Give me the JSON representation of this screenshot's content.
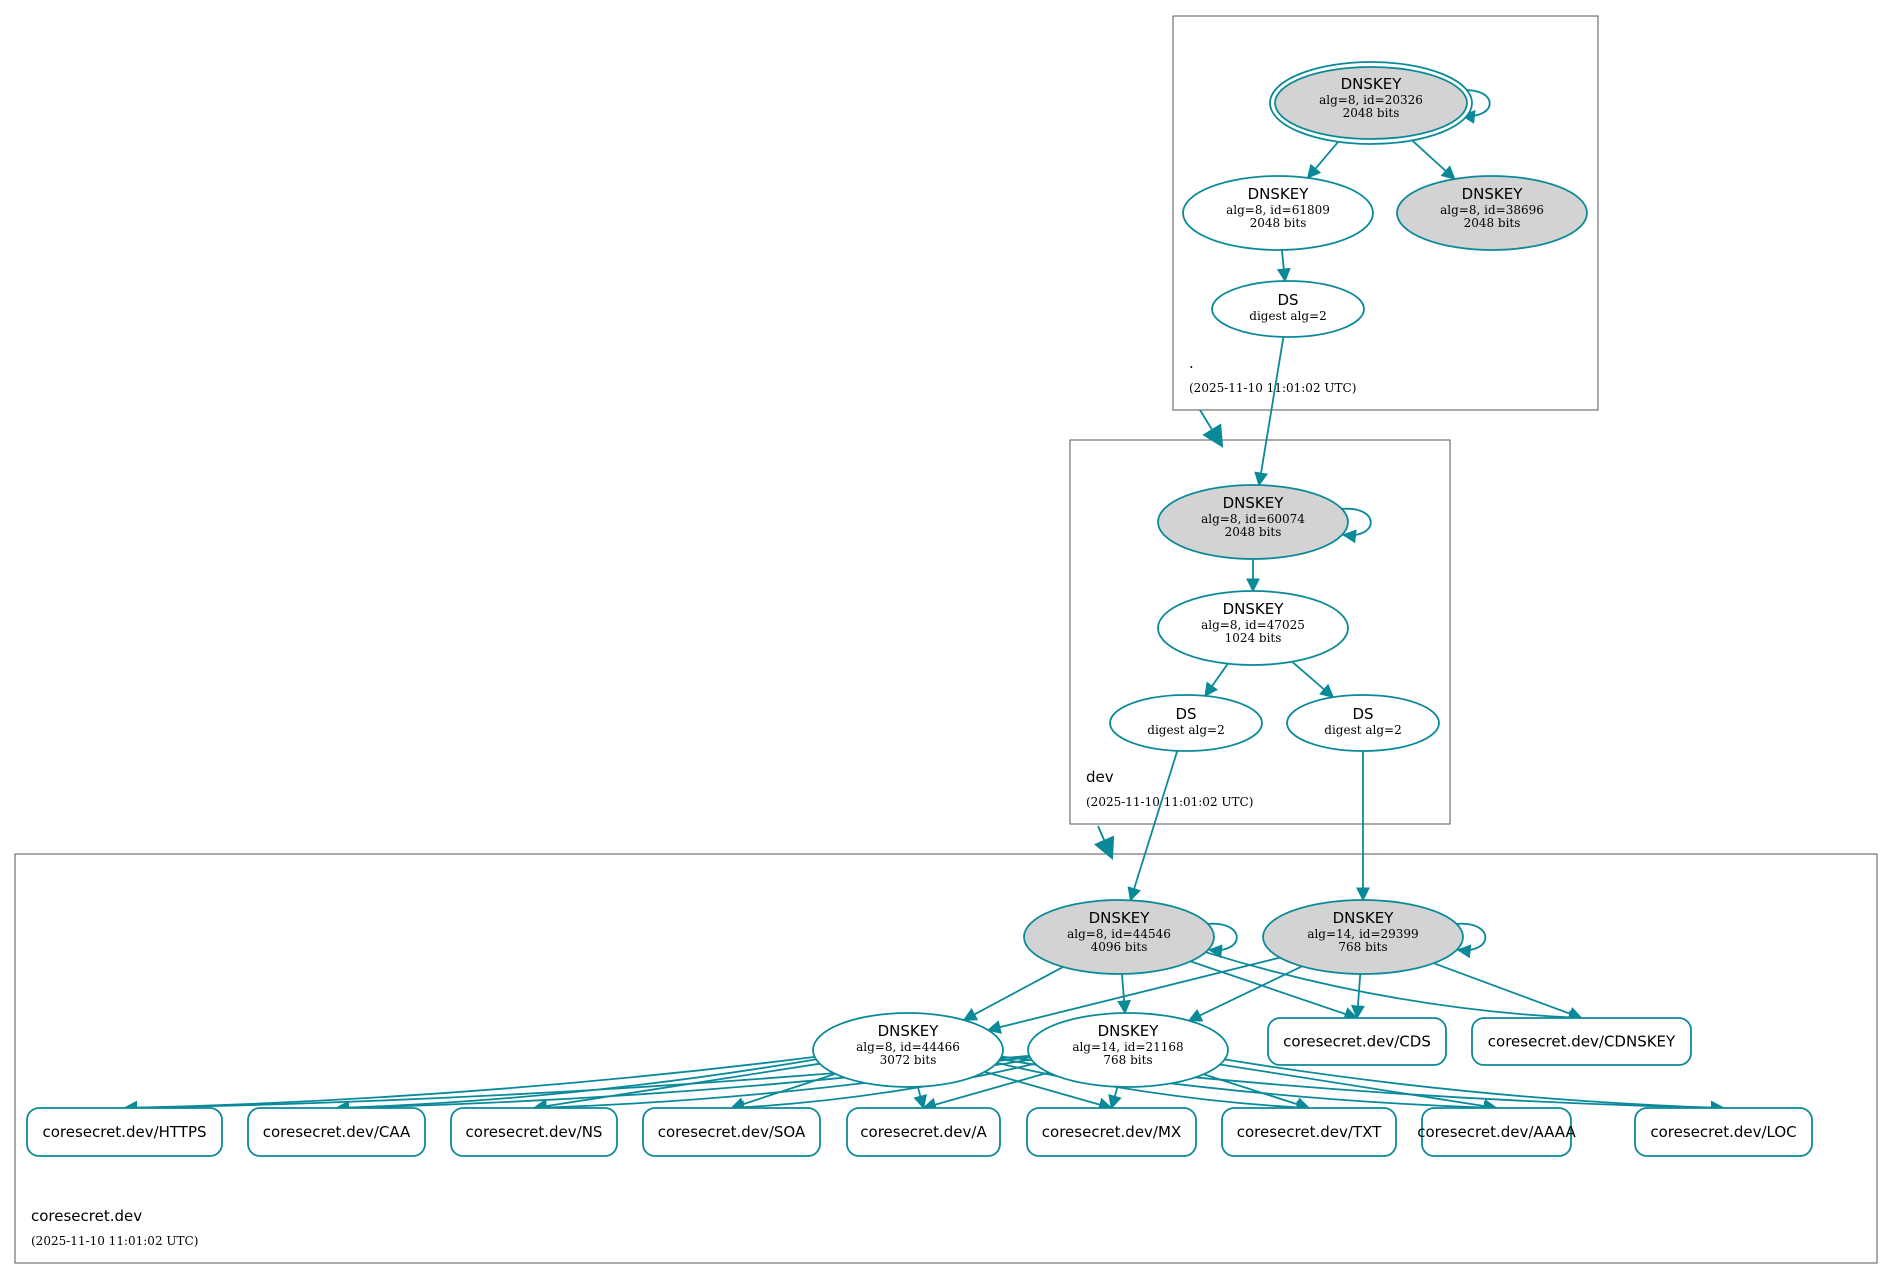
{
  "colors": {
    "edge": "#0a8a99",
    "shaded_node": "#d3d3d3",
    "zone_border": "#555555"
  },
  "zones": [
    {
      "id": "root",
      "name": ".",
      "date": "(2025-11-10 11:01:02 UTC)"
    },
    {
      "id": "dev",
      "name": "dev",
      "date": "(2025-11-10 11:01:02 UTC)"
    },
    {
      "id": "coresecret",
      "name": "coresecret.dev",
      "date": "(2025-11-10 11:01:02 UTC)"
    }
  ],
  "nodes": [
    {
      "id": "k20326",
      "kind": "ellipse",
      "shaded": true,
      "double": true,
      "lines": [
        "DNSKEY",
        "alg=8, id=20326",
        "2048 bits"
      ]
    },
    {
      "id": "k61809",
      "kind": "ellipse",
      "shaded": false,
      "lines": [
        "DNSKEY",
        "alg=8, id=61809",
        "2048 bits"
      ]
    },
    {
      "id": "k38696",
      "kind": "ellipse",
      "shaded": true,
      "lines": [
        "DNSKEY",
        "alg=8, id=38696",
        "2048 bits"
      ]
    },
    {
      "id": "dsroot",
      "kind": "ellipse",
      "shaded": false,
      "lines": [
        "DS",
        "digest alg=2"
      ]
    },
    {
      "id": "k60074",
      "kind": "ellipse",
      "shaded": true,
      "lines": [
        "DNSKEY",
        "alg=8, id=60074",
        "2048 bits"
      ]
    },
    {
      "id": "k47025",
      "kind": "ellipse",
      "shaded": false,
      "lines": [
        "DNSKEY",
        "alg=8, id=47025",
        "1024 bits"
      ]
    },
    {
      "id": "dsdev1",
      "kind": "ellipse",
      "shaded": false,
      "lines": [
        "DS",
        "digest alg=2"
      ]
    },
    {
      "id": "dsdev2",
      "kind": "ellipse",
      "shaded": false,
      "lines": [
        "DS",
        "digest alg=2"
      ]
    },
    {
      "id": "k44546",
      "kind": "ellipse",
      "shaded": true,
      "lines": [
        "DNSKEY",
        "alg=8, id=44546",
        "4096 bits"
      ]
    },
    {
      "id": "k29399",
      "kind": "ellipse",
      "shaded": true,
      "lines": [
        "DNSKEY",
        "alg=14, id=29399",
        "768 bits"
      ]
    },
    {
      "id": "k44466",
      "kind": "ellipse",
      "shaded": false,
      "lines": [
        "DNSKEY",
        "alg=8, id=44466",
        "3072 bits"
      ]
    },
    {
      "id": "k21168",
      "kind": "ellipse",
      "shaded": false,
      "lines": [
        "DNSKEY",
        "alg=14, id=21168",
        "768 bits"
      ]
    },
    {
      "id": "cds",
      "kind": "rrset",
      "lines": [
        "coresecret.dev/CDS"
      ]
    },
    {
      "id": "cdnskey",
      "kind": "rrset",
      "lines": [
        "coresecret.dev/CDNSKEY"
      ]
    },
    {
      "id": "https",
      "kind": "rrset",
      "lines": [
        "coresecret.dev/HTTPS"
      ]
    },
    {
      "id": "caa",
      "kind": "rrset",
      "lines": [
        "coresecret.dev/CAA"
      ]
    },
    {
      "id": "ns",
      "kind": "rrset",
      "lines": [
        "coresecret.dev/NS"
      ]
    },
    {
      "id": "soa",
      "kind": "rrset",
      "lines": [
        "coresecret.dev/SOA"
      ]
    },
    {
      "id": "a",
      "kind": "rrset",
      "lines": [
        "coresecret.dev/A"
      ]
    },
    {
      "id": "mx",
      "kind": "rrset",
      "lines": [
        "coresecret.dev/MX"
      ]
    },
    {
      "id": "txt",
      "kind": "rrset",
      "lines": [
        "coresecret.dev/TXT"
      ]
    },
    {
      "id": "aaaa",
      "kind": "rrset",
      "lines": [
        "coresecret.dev/AAAA"
      ]
    },
    {
      "id": "loc",
      "kind": "rrset",
      "lines": [
        "coresecret.dev/LOC"
      ]
    }
  ],
  "edges": [
    [
      "k20326",
      "k20326"
    ],
    [
      "k20326",
      "k61809"
    ],
    [
      "k20326",
      "k38696"
    ],
    [
      "k61809",
      "dsroot"
    ],
    [
      "dsroot",
      "k60074"
    ],
    [
      "k60074",
      "k60074"
    ],
    [
      "k60074",
      "k47025"
    ],
    [
      "k47025",
      "dsdev1"
    ],
    [
      "k47025",
      "dsdev2"
    ],
    [
      "dsdev1",
      "k44546"
    ],
    [
      "dsdev2",
      "k29399"
    ],
    [
      "k44546",
      "k44546"
    ],
    [
      "k29399",
      "k29399"
    ],
    [
      "k44546",
      "k44466"
    ],
    [
      "k44546",
      "k21168"
    ],
    [
      "k44546",
      "cds"
    ],
    [
      "k44546",
      "cdnskey"
    ],
    [
      "k29399",
      "k44466"
    ],
    [
      "k29399",
      "k21168"
    ],
    [
      "k29399",
      "cds"
    ],
    [
      "k29399",
      "cdnskey"
    ],
    [
      "k44466",
      "https"
    ],
    [
      "k44466",
      "caa"
    ],
    [
      "k44466",
      "ns"
    ],
    [
      "k44466",
      "soa"
    ],
    [
      "k44466",
      "a"
    ],
    [
      "k44466",
      "mx"
    ],
    [
      "k44466",
      "txt"
    ],
    [
      "k44466",
      "aaaa"
    ],
    [
      "k44466",
      "loc"
    ],
    [
      "k21168",
      "https"
    ],
    [
      "k21168",
      "caa"
    ],
    [
      "k21168",
      "ns"
    ],
    [
      "k21168",
      "soa"
    ],
    [
      "k21168",
      "a"
    ],
    [
      "k21168",
      "mx"
    ],
    [
      "k21168",
      "txt"
    ],
    [
      "k21168",
      "aaaa"
    ],
    [
      "k21168",
      "loc"
    ]
  ],
  "delegations": [
    [
      "root",
      "dev"
    ],
    [
      "dev",
      "coresecret"
    ]
  ]
}
